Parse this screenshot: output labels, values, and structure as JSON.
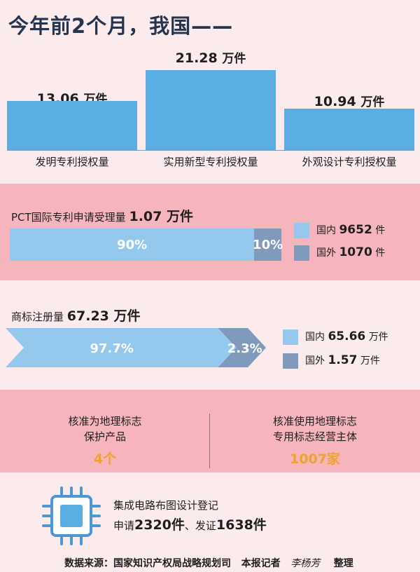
{
  "title": "今年前2个月，我国——",
  "chart_data": [
    {
      "type": "bar",
      "categories": [
        "发明专利授权量",
        "实用新型专利授权量",
        "外观设计专利授权量"
      ],
      "values": [
        13.06,
        21.28,
        10.94
      ],
      "value_labels": [
        "13.06",
        "21.28",
        "10.94"
      ],
      "unit": "万件",
      "ylim": [
        0,
        22
      ]
    },
    {
      "type": "bar",
      "title_prefix": "PCT国际专利申请受理量",
      "title_value": "1.07",
      "title_unit": "万件",
      "segments": [
        {
          "label": "国内",
          "value": 9652,
          "unit": "件",
          "percent": 90,
          "percent_label": "90%",
          "color": "#94c8ec"
        },
        {
          "label": "国外",
          "value": 1070,
          "unit": "件",
          "percent": 10,
          "percent_label": "10%",
          "color": "#7f9aba"
        }
      ]
    },
    {
      "type": "bar",
      "title_prefix": "商标注册量",
      "title_value": "67.23",
      "title_unit": "万件",
      "segments": [
        {
          "label": "国内",
          "value": 65.66,
          "unit": "万件",
          "percent": 97.7,
          "percent_label": "97.7%",
          "color": "#94c8ec"
        },
        {
          "label": "国外",
          "value": 1.57,
          "unit": "万件",
          "percent": 2.3,
          "percent_label": "2.3%",
          "color": "#7f9aba"
        }
      ]
    }
  ],
  "geo": {
    "left": {
      "label": "核准为地理标志\n保护产品",
      "value": "4个"
    },
    "right": {
      "label": "核准使用地理标志\n专用标志经营主体",
      "value": "1007家"
    }
  },
  "ic": {
    "line1": "集成电路布图设计登记",
    "line2_a": "申请",
    "line2_a_val": "2320件",
    "line2_b": "、发证",
    "line2_b_val": "1638件"
  },
  "source": {
    "text": "数据来源：国家知识产权局战略规划司",
    "reporter_label": "本报记者",
    "reporter": "李杨芳",
    "suffix": "整理"
  }
}
